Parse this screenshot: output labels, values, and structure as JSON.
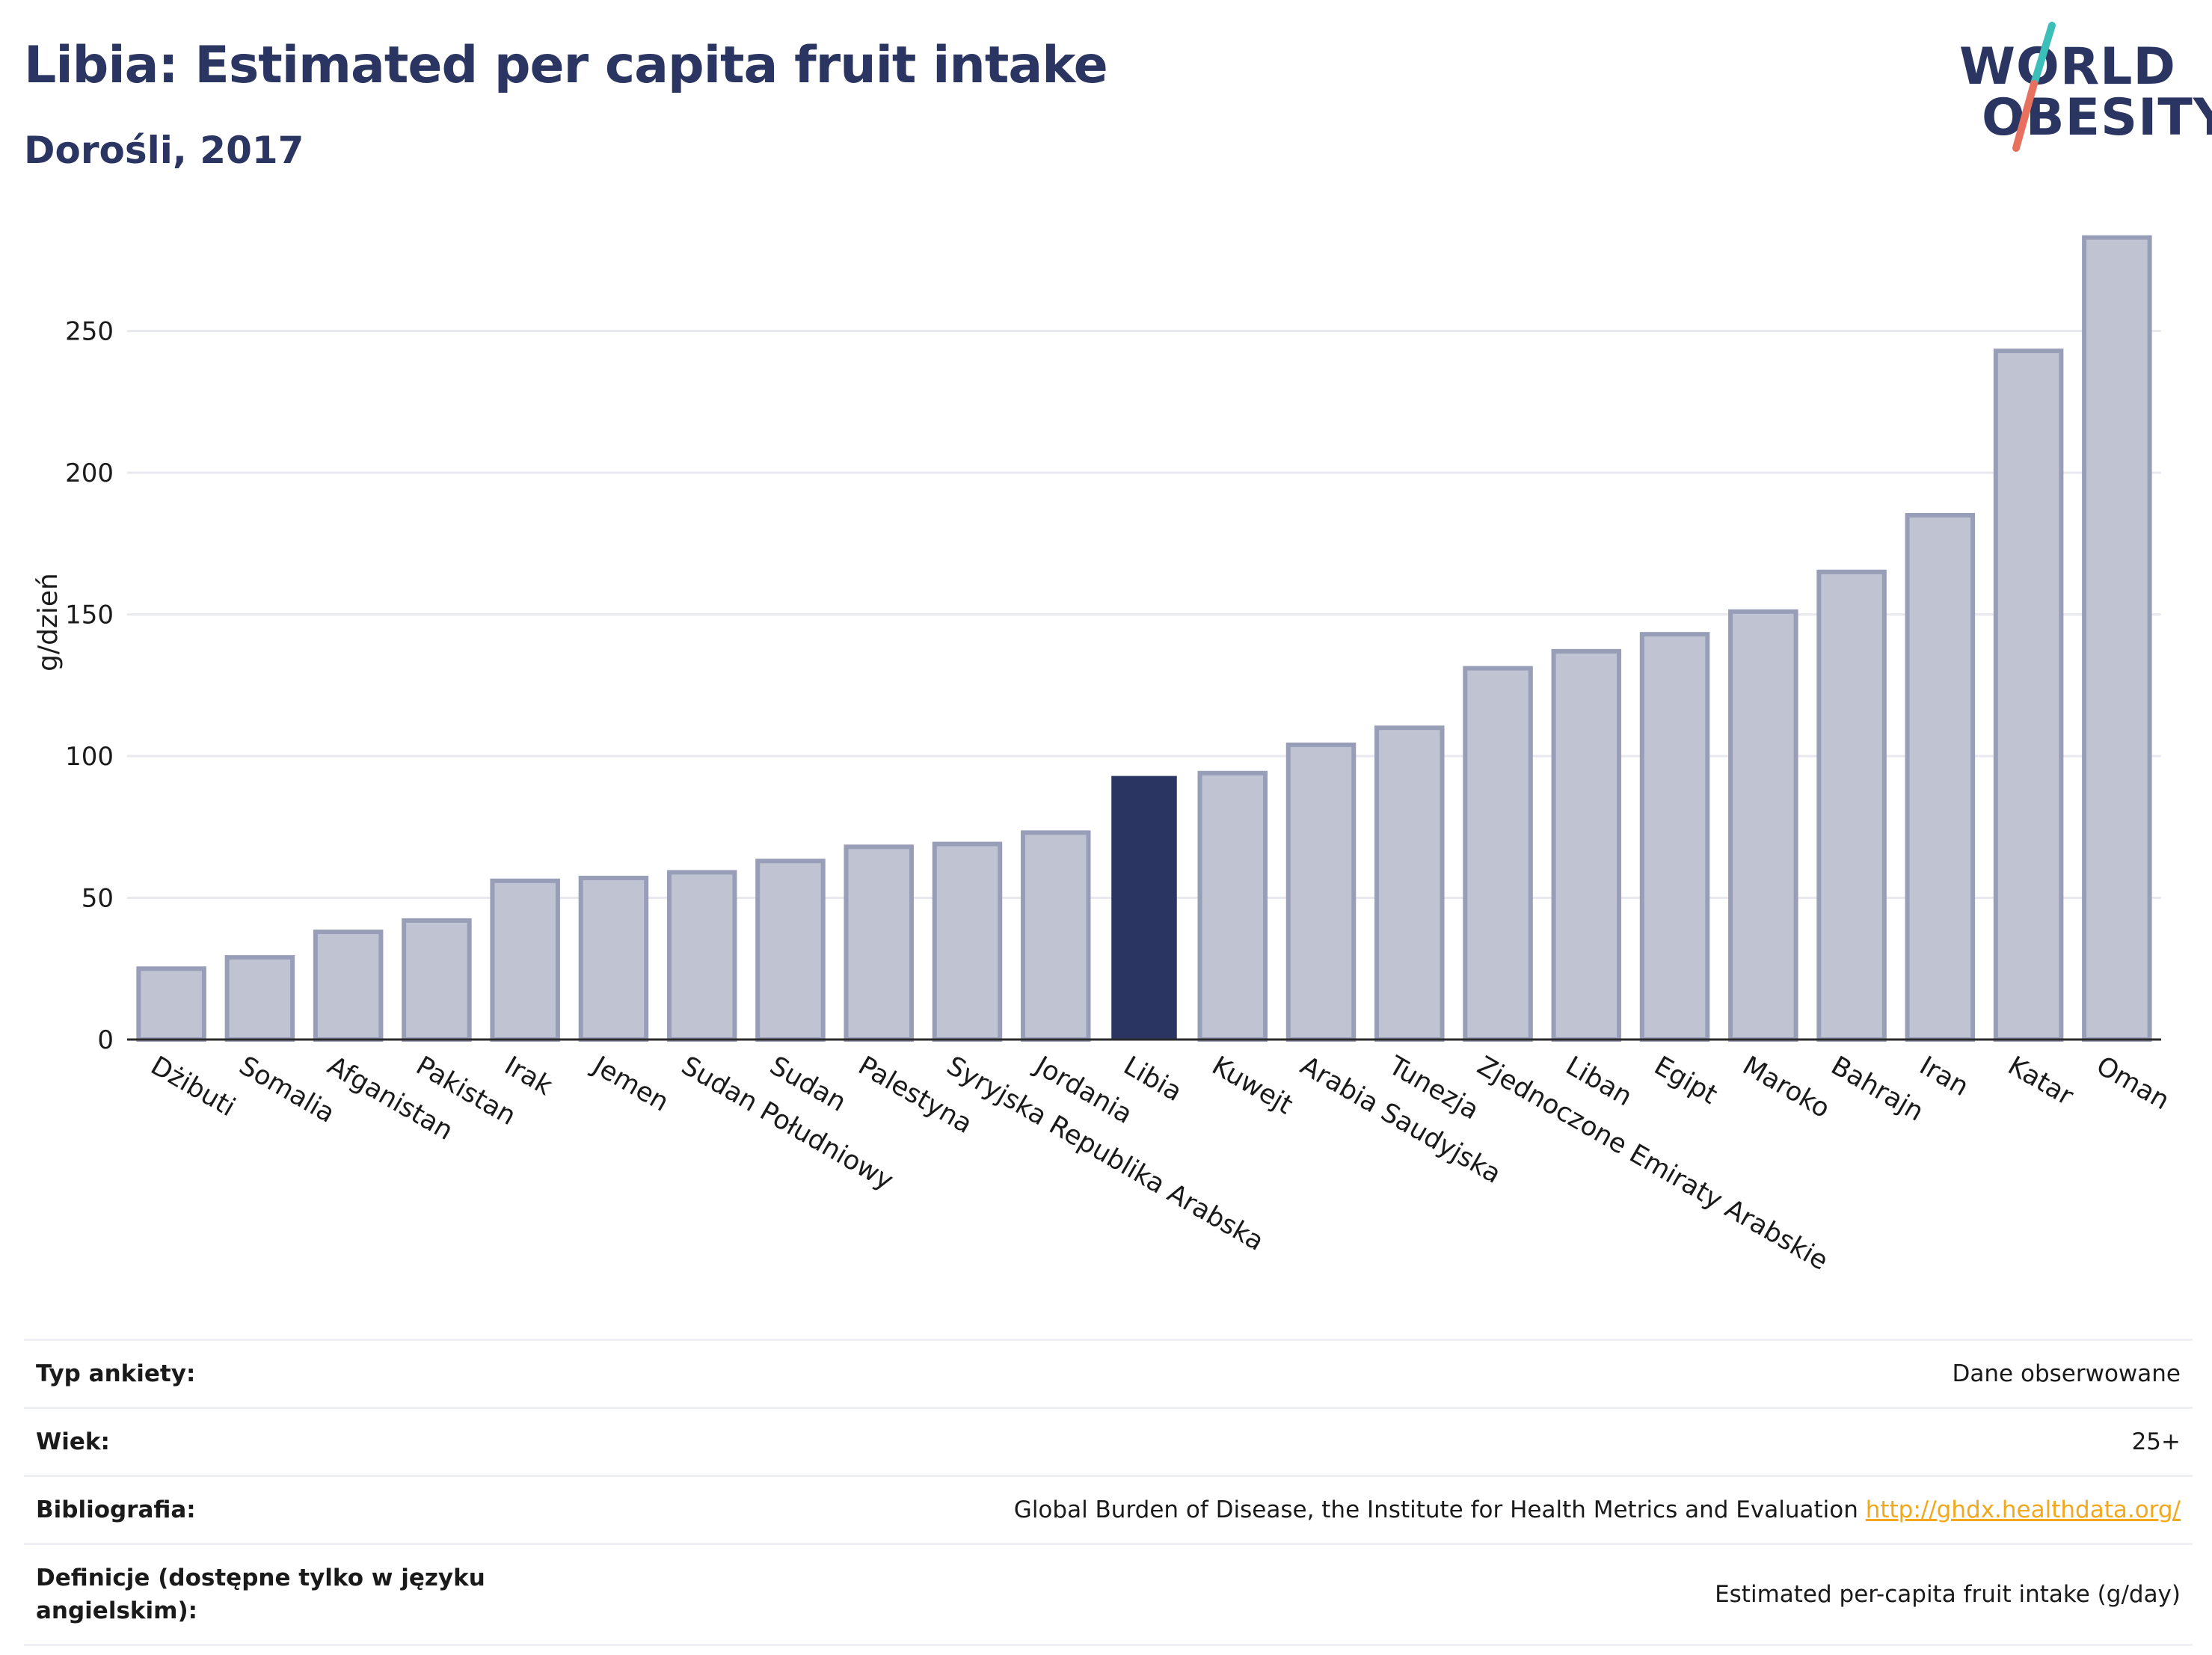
{
  "header": {
    "title": "Libia: Estimated per capita fruit intake",
    "subtitle": "Dorośli, 2017"
  },
  "logo": {
    "line1": "WORLD",
    "line2": "OBESITY",
    "slash_colors": [
      "#3bbfb8",
      "#e8705f"
    ]
  },
  "colors": {
    "bar": "#c0c4d2",
    "bar_border": "#989eb8",
    "highlight": "#2b3561",
    "text_dark": "#2b3561",
    "link": "#f2a81d"
  },
  "chart_data": {
    "type": "bar",
    "title": "",
    "ylabel": "g/dzień",
    "ylim": [
      0,
      285
    ],
    "yticks": [
      0,
      50,
      100,
      150,
      200,
      250
    ],
    "grid": true,
    "highlight": "Libia",
    "categories": [
      "Dżibuti",
      "Somalia",
      "Afganistan",
      "Pakistan",
      "Irak",
      "Jemen",
      "Sudan Południowy",
      "Sudan",
      "Palestyna",
      "Syryjska Republika Arabska",
      "Jordania",
      "Libia",
      "Kuwejt",
      "Arabia Saudyjska",
      "Tunezja",
      "Zjednoczone Emiraty Arabskie",
      "Liban",
      "Egipt",
      "Maroko",
      "Bahrajn",
      "Iran",
      "Katar",
      "Oman"
    ],
    "values": [
      25,
      29,
      38,
      42,
      56,
      57,
      59,
      63,
      68,
      69,
      73,
      93,
      94,
      104,
      110,
      131,
      137,
      143,
      151,
      165,
      185,
      243,
      283
    ]
  },
  "info": {
    "rows": [
      {
        "label": "Typ ankiety:",
        "value": "Dane obserwowane"
      },
      {
        "label": "Wiek:",
        "value": "25+"
      },
      {
        "label": "Bibliografia:",
        "value": "Global Burden of Disease, the Institute for Health Metrics and Evaluation",
        "link": "http://ghdx.healthdata.org/"
      },
      {
        "label": "Definicje (dostępne tylko w języku angielskim):",
        "value": "Estimated per-capita fruit intake (g/day)"
      }
    ]
  }
}
